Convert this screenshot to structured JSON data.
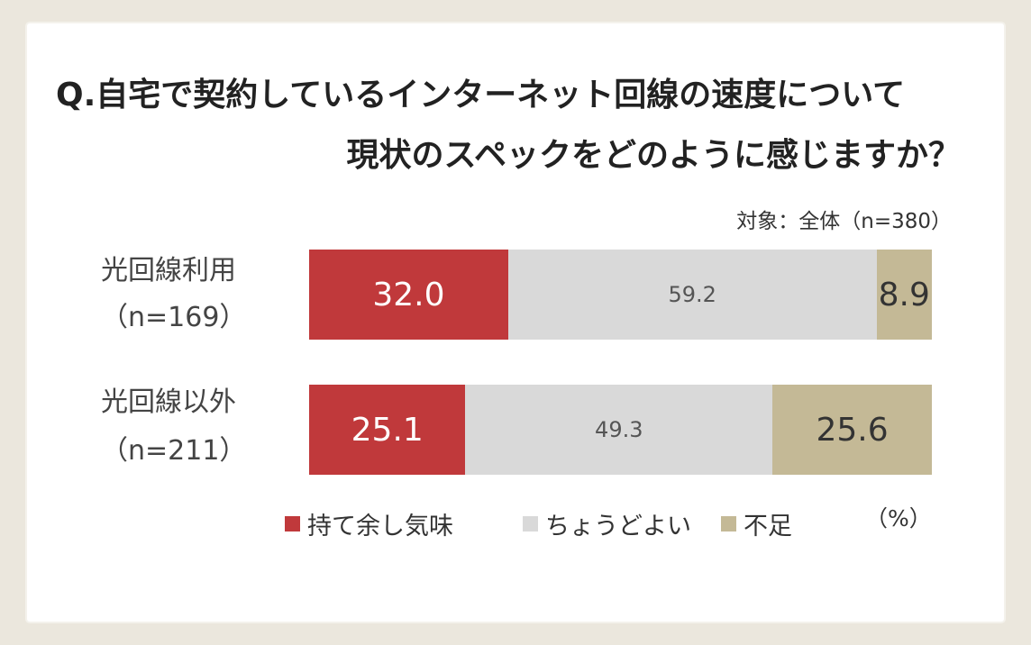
{
  "title": {
    "line1": "Q.自宅で契約しているインターネット回線の速度について",
    "line2": "現状のスペックをどのように感じますか？"
  },
  "subject": "対象：全体（n=380）",
  "unit": "（%）",
  "rows": [
    {
      "label": "光回線利用",
      "n": "（n=169）"
    },
    {
      "label": "光回線以外",
      "n": "（n=211）"
    }
  ],
  "legend": [
    "持て余し気味",
    "ちょうどよい",
    "不足"
  ],
  "colors": {
    "excess": "#c0393b",
    "just": "#d9d9d9",
    "short": "#c4b996"
  },
  "chart_data": {
    "type": "bar",
    "orientation": "horizontal",
    "stacked": true,
    "percent": true,
    "categories": [
      "光回線利用（n=169）",
      "光回線以外（n=211）"
    ],
    "series": [
      {
        "name": "持て余し気味",
        "values": [
          32.0,
          25.1
        ]
      },
      {
        "name": "ちょうどよい",
        "values": [
          59.2,
          49.3
        ]
      },
      {
        "name": "不足",
        "values": [
          8.9,
          25.6
        ]
      }
    ],
    "value_labels": [
      [
        "32.0",
        "59.2",
        "8.9"
      ],
      [
        "25.1",
        "49.3",
        "25.6"
      ]
    ],
    "legend_position": "bottom"
  }
}
